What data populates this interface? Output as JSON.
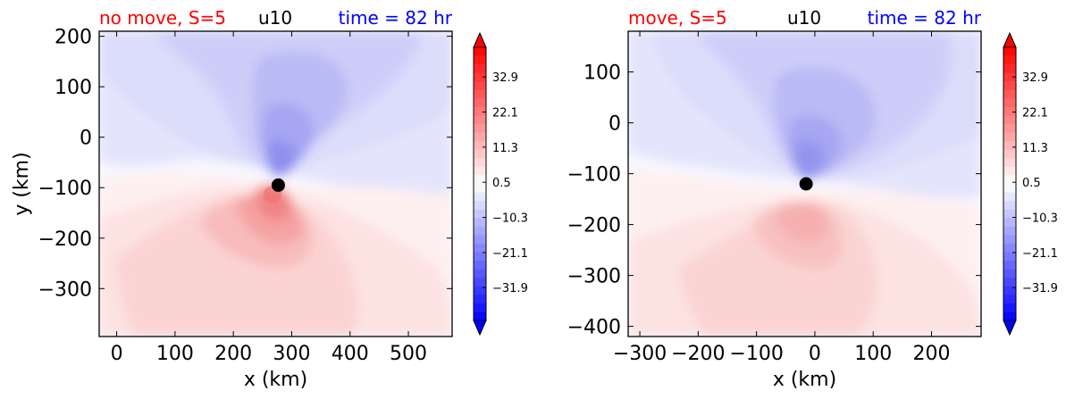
{
  "chart_data": [
    {
      "type": "contourf",
      "title_left": "no move, S=5",
      "title_left_color": "#ff0000",
      "title_center": "u10",
      "title_right": "time = 82 hr",
      "title_right_color": "#0000ff",
      "xlabel": "x (km)",
      "ylabel": "y (km)",
      "xlim": [
        -30,
        575
      ],
      "ylim": [
        -395,
        210
      ],
      "xticks": [
        0,
        100,
        200,
        300,
        400,
        500
      ],
      "yticks": [
        200,
        100,
        0,
        -100,
        -200,
        -300
      ],
      "center_marker": {
        "x": 277,
        "y": -95
      },
      "colorbar": {
        "ticks": [
          "32.9",
          "22.1",
          "11.3",
          "0.5",
          "−10.3",
          "−21.1",
          "−31.9"
        ],
        "range": [
          -42,
          42
        ],
        "cmap": "bwr",
        "extend": "both"
      }
    },
    {
      "type": "contourf",
      "title_left": "move, S=5",
      "title_left_color": "#ff0000",
      "title_center": "u10",
      "title_right": "time = 82 hr",
      "title_right_color": "#0000ff",
      "xlabel": "x (km)",
      "ylabel": "",
      "xlim": [
        -320,
        285
      ],
      "ylim": [
        -420,
        180
      ],
      "xticks": [
        -300,
        -200,
        -100,
        0,
        100,
        200
      ],
      "yticks": [
        100,
        0,
        -100,
        -200,
        -300,
        -400
      ],
      "center_marker": {
        "x": -15,
        "y": -120
      },
      "colorbar": {
        "ticks": [
          "32.9",
          "22.1",
          "11.3",
          "0.5",
          "−10.3",
          "−21.1",
          "−31.9"
        ],
        "range": [
          -42,
          42
        ],
        "cmap": "bwr",
        "extend": "both"
      }
    }
  ]
}
